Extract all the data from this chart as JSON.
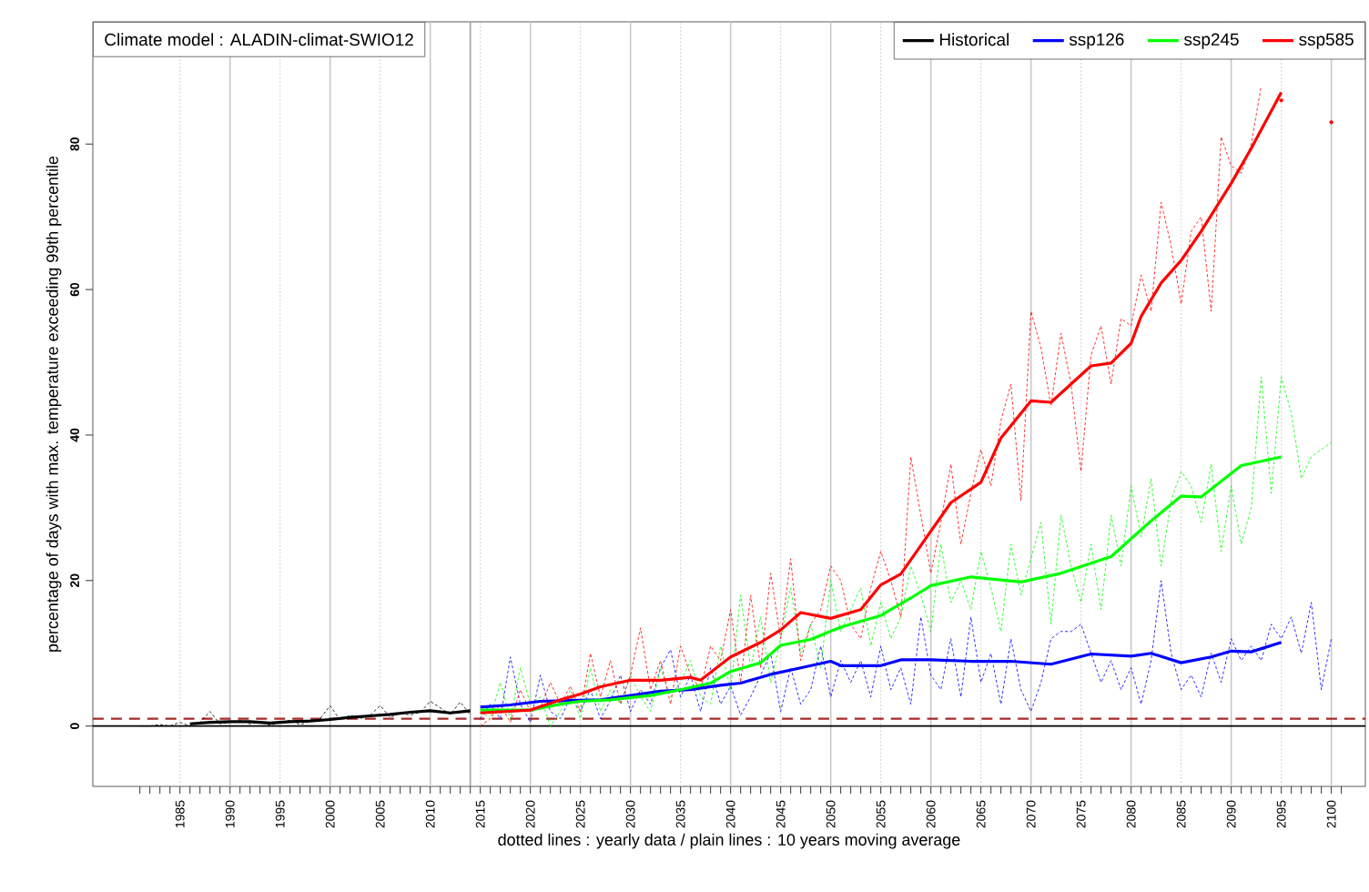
{
  "chart_data": {
    "type": "line",
    "title": "Climate model :  ALADIN-climat-SWIO12",
    "xlabel": "dotted lines : yearly data   /   plain lines : 10 years moving average",
    "ylabel": "percentage of days with max. temperature exceeding 99th percentile",
    "xlim": [
      1976.3,
      2103.4
    ],
    "ylim": [
      -8.3,
      96.8
    ],
    "yticks": [
      0,
      20,
      40,
      60,
      80
    ],
    "xticks": [
      {
        "value": 1981,
        "label": null
      },
      {
        "value": 1982,
        "label": null
      },
      {
        "value": 1983,
        "label": null
      },
      {
        "value": 1984,
        "label": null
      },
      1985,
      {
        "value": 1986,
        "label": null
      },
      {
        "value": 1987,
        "label": null
      },
      {
        "value": 1988,
        "label": null
      },
      {
        "value": 1989,
        "label": null
      },
      1990,
      {
        "value": 1991,
        "label": null
      },
      {
        "value": 1992,
        "label": null
      },
      {
        "value": 1993,
        "label": null
      },
      {
        "value": 1994,
        "label": null
      },
      1995,
      {
        "value": 1996,
        "label": null
      },
      {
        "value": 1997,
        "label": null
      },
      {
        "value": 1998,
        "label": null
      },
      {
        "value": 1999,
        "label": null
      },
      2000,
      {
        "value": 2001,
        "label": null
      },
      {
        "value": 2002,
        "label": null
      },
      {
        "value": 2003,
        "label": null
      },
      {
        "value": 2004,
        "label": null
      },
      2005,
      {
        "value": 2006,
        "label": null
      },
      {
        "value": 2007,
        "label": null
      },
      {
        "value": 2008,
        "label": null
      },
      {
        "value": 2009,
        "label": null
      },
      2010,
      {
        "value": 2011,
        "label": null
      },
      {
        "value": 2012,
        "label": null
      },
      {
        "value": 2013,
        "label": null
      },
      {
        "value": 2014,
        "label": null
      },
      2015,
      {
        "value": 2016,
        "label": null
      },
      {
        "value": 2017,
        "label": null
      },
      {
        "value": 2018,
        "label": null
      },
      {
        "value": 2019,
        "label": null
      },
      2020,
      {
        "value": 2021,
        "label": null
      },
      {
        "value": 2022,
        "label": null
      },
      {
        "value": 2023,
        "label": null
      },
      {
        "value": 2024,
        "label": null
      },
      2025,
      {
        "value": 2026,
        "label": null
      },
      {
        "value": 2027,
        "label": null
      },
      {
        "value": 2028,
        "label": null
      },
      {
        "value": 2029,
        "label": null
      },
      2030,
      {
        "value": 2031,
        "label": null
      },
      {
        "value": 2032,
        "label": null
      },
      {
        "value": 2033,
        "label": null
      },
      {
        "value": 2034,
        "label": null
      },
      2035,
      {
        "value": 2036,
        "label": null
      },
      {
        "value": 2037,
        "label": null
      },
      {
        "value": 2038,
        "label": null
      },
      {
        "value": 2039,
        "label": null
      },
      2040,
      {
        "value": 2041,
        "label": null
      },
      {
        "value": 2042,
        "label": null
      },
      {
        "value": 2043,
        "label": null
      },
      {
        "value": 2044,
        "label": null
      },
      2045,
      {
        "value": 2046,
        "label": null
      },
      {
        "value": 2047,
        "label": null
      },
      {
        "value": 2048,
        "label": null
      },
      {
        "value": 2049,
        "label": null
      },
      2050,
      {
        "value": 2051,
        "label": null
      },
      {
        "value": 2052,
        "label": null
      },
      {
        "value": 2053,
        "label": null
      },
      {
        "value": 2054,
        "label": null
      },
      2055,
      {
        "value": 2056,
        "label": null
      },
      {
        "value": 2057,
        "label": null
      },
      {
        "value": 2058,
        "label": null
      },
      {
        "value": 2059,
        "label": null
      },
      2060,
      {
        "value": 2061,
        "label": null
      },
      {
        "value": 2062,
        "label": null
      },
      {
        "value": 2063,
        "label": null
      },
      {
        "value": 2064,
        "label": null
      },
      2065,
      {
        "value": 2066,
        "label": null
      },
      {
        "value": 2067,
        "label": null
      },
      {
        "value": 2068,
        "label": null
      },
      {
        "value": 2069,
        "label": null
      },
      2070,
      {
        "value": 2071,
        "label": null
      },
      {
        "value": 2072,
        "label": null
      },
      {
        "value": 2073,
        "label": null
      },
      {
        "value": 2074,
        "label": null
      },
      2075,
      {
        "value": 2076,
        "label": null
      },
      {
        "value": 2077,
        "label": null
      },
      {
        "value": 2078,
        "label": null
      },
      {
        "value": 2079,
        "label": null
      },
      2080,
      {
        "value": 2081,
        "label": null
      },
      {
        "value": 2082,
        "label": null
      },
      {
        "value": 2083,
        "label": null
      },
      {
        "value": 2084,
        "label": null
      },
      2085,
      {
        "value": 2086,
        "label": null
      },
      {
        "value": 2087,
        "label": null
      },
      {
        "value": 2088,
        "label": null
      },
      {
        "value": 2089,
        "label": null
      },
      2090,
      {
        "value": 2091,
        "label": null
      },
      {
        "value": 2092,
        "label": null
      },
      {
        "value": 2093,
        "label": null
      },
      {
        "value": 2094,
        "label": null
      },
      2095,
      {
        "value": 2096,
        "label": null
      },
      {
        "value": 2097,
        "label": null
      },
      {
        "value": 2098,
        "label": null
      },
      {
        "value": 2099,
        "label": null
      },
      2100,
      {
        "value": 2101,
        "label": null
      }
    ],
    "legend": "top right",
    "ref_lines": [
      {
        "axis": "x",
        "value": 1985,
        "color": "#d8d8d8",
        "line_style": "dotted"
      },
      {
        "axis": "x",
        "value": 1995,
        "color": "#d8d8d8",
        "line_style": "dotted"
      },
      {
        "axis": "x",
        "value": 2005,
        "color": "#d8d8d8",
        "line_style": "dotted"
      },
      {
        "axis": "x",
        "value": 2015,
        "color": "#d8d8d8",
        "line_style": "dotted"
      },
      {
        "axis": "x",
        "value": 2025,
        "color": "#d8d8d8",
        "line_style": "dotted"
      },
      {
        "axis": "x",
        "value": 2035,
        "color": "#d8d8d8",
        "line_style": "dotted"
      },
      {
        "axis": "x",
        "value": 2045,
        "color": "#d8d8d8",
        "line_style": "dotted"
      },
      {
        "axis": "x",
        "value": 2055,
        "color": "#d8d8d8",
        "line_style": "dotted"
      },
      {
        "axis": "x",
        "value": 2065,
        "color": "#d8d8d8",
        "line_style": "dotted"
      },
      {
        "axis": "x",
        "value": 2075,
        "color": "#d8d8d8",
        "line_style": "dotted"
      },
      {
        "axis": "x",
        "value": 2085,
        "color": "#d8d8d8",
        "line_style": "dotted"
      },
      {
        "axis": "x",
        "value": 2095,
        "color": "#d8d8d8",
        "line_style": "dotted"
      },
      {
        "axis": "x",
        "value": 1990,
        "color": "#c8c8c8",
        "line_style": "solid"
      },
      {
        "axis": "x",
        "value": 2000,
        "color": "#c8c8c8",
        "line_style": "solid"
      },
      {
        "axis": "x",
        "value": 2010,
        "color": "#c8c8c8",
        "line_style": "solid"
      },
      {
        "axis": "x",
        "value": 2020,
        "color": "#c8c8c8",
        "line_style": "solid"
      },
      {
        "axis": "x",
        "value": 2030,
        "color": "#c8c8c8",
        "line_style": "solid"
      },
      {
        "axis": "x",
        "value": 2040,
        "color": "#c8c8c8",
        "line_style": "solid"
      },
      {
        "axis": "x",
        "value": 2050,
        "color": "#c8c8c8",
        "line_style": "solid"
      },
      {
        "axis": "x",
        "value": 2060,
        "color": "#c8c8c8",
        "line_style": "solid"
      },
      {
        "axis": "x",
        "value": 2070,
        "color": "#c8c8c8",
        "line_style": "solid"
      },
      {
        "axis": "x",
        "value": 2080,
        "color": "#c8c8c8",
        "line_style": "solid"
      },
      {
        "axis": "x",
        "value": 2090,
        "color": "#c8c8c8",
        "line_style": "solid"
      },
      {
        "axis": "x",
        "value": 2100,
        "color": "#c8c8c8",
        "line_style": "solid"
      },
      {
        "axis": "x",
        "value": 2014,
        "color": "#a0a0a0",
        "line_style": "solid"
      },
      {
        "axis": "y",
        "value": 0,
        "color": "#000000",
        "line_style": "solid"
      },
      {
        "axis": "y",
        "value": 1,
        "color": "#a52a2a",
        "line_style": "dashed"
      }
    ],
    "series": [
      {
        "color": "#000000",
        "line_style": "dotted",
        "x": [
          1981,
          1982,
          1983,
          1984,
          1985,
          1986,
          1987,
          1988,
          1989,
          1990,
          1991,
          1992,
          1993,
          1994,
          1995,
          1996,
          1997,
          1998,
          1999,
          2000,
          2001,
          2002,
          2003,
          2004,
          2005,
          2006,
          2007,
          2008,
          2009,
          2010,
          2011,
          2012,
          2013,
          2014
        ],
        "values": [
          0,
          0,
          0.2,
          0,
          0.5,
          0,
          0.5,
          2.0,
          0.3,
          0.5,
          0.8,
          0.3,
          0.6,
          0.1,
          0.5,
          0.8,
          0.2,
          0.6,
          1.0,
          2.8,
          0.8,
          1.5,
          1.0,
          1.5,
          2.8,
          1.2,
          1.8,
          1.5,
          1.9,
          3.4,
          2.5,
          1.6,
          3.3,
          1.5
        ]
      },
      {
        "color": "#0000ff",
        "line_style": "dotted",
        "x": [
          2015,
          2016,
          2017,
          2018,
          2019,
          2020,
          2021,
          2022,
          2023,
          2024,
          2025,
          2026,
          2027,
          2028,
          2029,
          2030,
          2031,
          2032,
          2033,
          2034,
          2035,
          2036,
          2037,
          2038,
          2039,
          2040,
          2041,
          2042,
          2043,
          2044,
          2045,
          2046,
          2047,
          2048,
          2049,
          2050,
          2051,
          2052,
          2053,
          2054,
          2055,
          2056,
          2057,
          2058,
          2059,
          2060,
          2061,
          2062,
          2063,
          2064,
          2065,
          2066,
          2067,
          2068,
          2069,
          2070,
          2071,
          2072,
          2073,
          2074,
          2075,
          2076,
          2077,
          2078,
          2079,
          2080,
          2081,
          2082,
          2083,
          2084,
          2085,
          2086,
          2087,
          2088,
          2089,
          2090,
          2091,
          2092,
          2093,
          2094,
          2095,
          2096,
          2097,
          2098,
          2099,
          2100
        ],
        "values": [
          1,
          3,
          1,
          9.5,
          3,
          0.5,
          7,
          2,
          1,
          4,
          2,
          5,
          1,
          3.5,
          7,
          2,
          5,
          3,
          8,
          10.5,
          4,
          7,
          2,
          8,
          3,
          5.5,
          1.5,
          4,
          7,
          10,
          2,
          8,
          3,
          5,
          11,
          4,
          9,
          6,
          9,
          4,
          11,
          5,
          8,
          3,
          15,
          7,
          5,
          12,
          4,
          15,
          6,
          10,
          3,
          12,
          5,
          2,
          6,
          12,
          13,
          13,
          14,
          10,
          6,
          9,
          5,
          8,
          3,
          9,
          20,
          10,
          5,
          7,
          4,
          10,
          6,
          12,
          9,
          11,
          9,
          14,
          12,
          15,
          10,
          17,
          5,
          12
        ]
      },
      {
        "color": "#00ff00",
        "line_style": "dotted",
        "x": [
          2015,
          2016,
          2017,
          2018,
          2019,
          2020,
          2021,
          2022,
          2023,
          2024,
          2025,
          2026,
          2027,
          2028,
          2029,
          2030,
          2031,
          2032,
          2033,
          2034,
          2035,
          2036,
          2037,
          2038,
          2039,
          2040,
          2041,
          2042,
          2043,
          2044,
          2045,
          2046,
          2047,
          2048,
          2049,
          2050,
          2051,
          2052,
          2053,
          2054,
          2055,
          2056,
          2057,
          2058,
          2059,
          2060,
          2061,
          2062,
          2063,
          2064,
          2065,
          2066,
          2067,
          2068,
          2069,
          2070,
          2071,
          2072,
          2073,
          2074,
          2075,
          2076,
          2077,
          2078,
          2079,
          2080,
          2081,
          2082,
          2083,
          2084,
          2085,
          2086,
          2087,
          2088,
          2089,
          2090,
          2091,
          2092,
          2093,
          2094,
          2095,
          2096,
          2097,
          2098,
          2099,
          2100
        ],
        "values": [
          2,
          1,
          6,
          1,
          8,
          3,
          4,
          0,
          2,
          5,
          1,
          8,
          2,
          5,
          3,
          7,
          4,
          2,
          8,
          4,
          6,
          9,
          4,
          3,
          11,
          5,
          18,
          8,
          15,
          6,
          12,
          19,
          10,
          14,
          8,
          20,
          13,
          16,
          19,
          11,
          17,
          12,
          15,
          22,
          18,
          13,
          25,
          17,
          20,
          16,
          24,
          19,
          13,
          25,
          18,
          23,
          28,
          14,
          29,
          22,
          17,
          25,
          16,
          29,
          22,
          33,
          26,
          34,
          22,
          31,
          35,
          33,
          28,
          36,
          24,
          33,
          25,
          30,
          48,
          32,
          48,
          43,
          34,
          37,
          38,
          39
        ]
      },
      {
        "color": "#ff0000",
        "line_style": "dotted",
        "x": [
          2015,
          2016,
          2017,
          2018,
          2019,
          2020,
          2021,
          2022,
          2023,
          2024,
          2025,
          2026,
          2027,
          2028,
          2029,
          2030,
          2031,
          2032,
          2033,
          2034,
          2035,
          2036,
          2037,
          2038,
          2039,
          2040,
          2041,
          2042,
          2043,
          2044,
          2045,
          2046,
          2047,
          2048,
          2049,
          2050,
          2051,
          2052,
          2053,
          2054,
          2055,
          2056,
          2057,
          2058,
          2059,
          2060,
          2061,
          2062,
          2063,
          2064,
          2065,
          2066,
          2067,
          2068,
          2069,
          2070,
          2071,
          2072,
          2073,
          2074,
          2075,
          2076,
          2077,
          2078,
          2079,
          2080,
          2081,
          2082,
          2083,
          2084,
          2085,
          2086,
          2087,
          2088,
          2089,
          2090,
          2091,
          2092,
          2093,
          2094,
          2095,
          2096,
          2097,
          2098,
          2099,
          2100
        ],
        "values": [
          0,
          1,
          3,
          0.5,
          5,
          2,
          2.5,
          6,
          3,
          5.5,
          2,
          10,
          4,
          9,
          3,
          7,
          13.5,
          5,
          9,
          3,
          11,
          7,
          5,
          11,
          9,
          16,
          6,
          18,
          8,
          21,
          12,
          23,
          9,
          14,
          16,
          22,
          20,
          14,
          12,
          19,
          24,
          20,
          15,
          37,
          29,
          21,
          28,
          36,
          25,
          32,
          38,
          33,
          42,
          47,
          31,
          57,
          52,
          44,
          54,
          47,
          35,
          51,
          55,
          47,
          56,
          55,
          62,
          57,
          72,
          66,
          58,
          68,
          70,
          57,
          81,
          77,
          76,
          80,
          88,
          null,
          86,
          null,
          null,
          null,
          null,
          83
        ]
      },
      {
        "name": "Historical",
        "color": "#000000",
        "line_style": "solid",
        "x": [
          1986,
          1988,
          1990,
          1992,
          1994,
          1996,
          1998,
          2000,
          2002,
          2004,
          2006,
          2008,
          2010,
          2012,
          2014
        ],
        "values": [
          0.3,
          0.5,
          0.6,
          0.6,
          0.4,
          0.6,
          0.7,
          0.9,
          1.2,
          1.4,
          1.6,
          1.9,
          2.1,
          1.8,
          2.1
        ]
      },
      {
        "name": "ssp126",
        "color": "#0000ff",
        "line_style": "solid",
        "x": [
          2015,
          2018,
          2021,
          2024,
          2027,
          2030,
          2033,
          2036,
          2039,
          2041,
          2044,
          2047,
          2050,
          2051,
          2055,
          2057,
          2060,
          2064,
          2068,
          2072,
          2076,
          2080,
          2082,
          2085,
          2088,
          2090,
          2092,
          2095
        ],
        "values": [
          2.6,
          2.9,
          3.4,
          3.5,
          3.6,
          4.2,
          4.8,
          5.0,
          5.6,
          5.9,
          7.1,
          8.0,
          8.9,
          8.3,
          8.3,
          9.1,
          9.1,
          8.9,
          8.9,
          8.5,
          9.9,
          9.6,
          10.0,
          8.7,
          9.5,
          10.3,
          10.2,
          11.5
        ]
      },
      {
        "name": "ssp245",
        "color": "#00ff00",
        "line_style": "solid",
        "x": [
          2015,
          2020,
          2023,
          2025,
          2028,
          2032,
          2035,
          2038,
          2040,
          2043,
          2045,
          2048,
          2051,
          2055,
          2058,
          2060,
          2064,
          2069,
          2073,
          2078,
          2082,
          2085,
          2087,
          2091,
          2095
        ],
        "values": [
          2.2,
          2.2,
          3.0,
          3.4,
          3.6,
          4.2,
          5.0,
          5.9,
          7.5,
          8.7,
          11.1,
          11.9,
          13.6,
          15.2,
          17.6,
          19.3,
          20.5,
          19.8,
          21.0,
          23.3,
          28.2,
          31.6,
          31.5,
          35.8,
          37.0
        ]
      },
      {
        "name": "ssp585",
        "color": "#ff0000",
        "line_style": "solid",
        "x": [
          2015,
          2020,
          2023,
          2025,
          2027,
          2030,
          2033,
          2036,
          2037,
          2040,
          2043,
          2045,
          2047,
          2050,
          2053,
          2055,
          2057,
          2062,
          2065,
          2067,
          2070,
          2072,
          2076,
          2078,
          2080,
          2081,
          2083,
          2085,
          2087,
          2090,
          2092,
          2095
        ],
        "values": [
          1.8,
          2.2,
          3.6,
          4.4,
          5.4,
          6.3,
          6.3,
          6.7,
          6.3,
          9.5,
          11.5,
          13.2,
          15.6,
          14.8,
          16.0,
          19.4,
          20.9,
          30.7,
          33.5,
          39.6,
          44.7,
          44.5,
          49.5,
          49.9,
          52.6,
          56.3,
          60.9,
          64.0,
          68.0,
          74.6,
          79.4,
          87.1
        ]
      }
    ]
  }
}
